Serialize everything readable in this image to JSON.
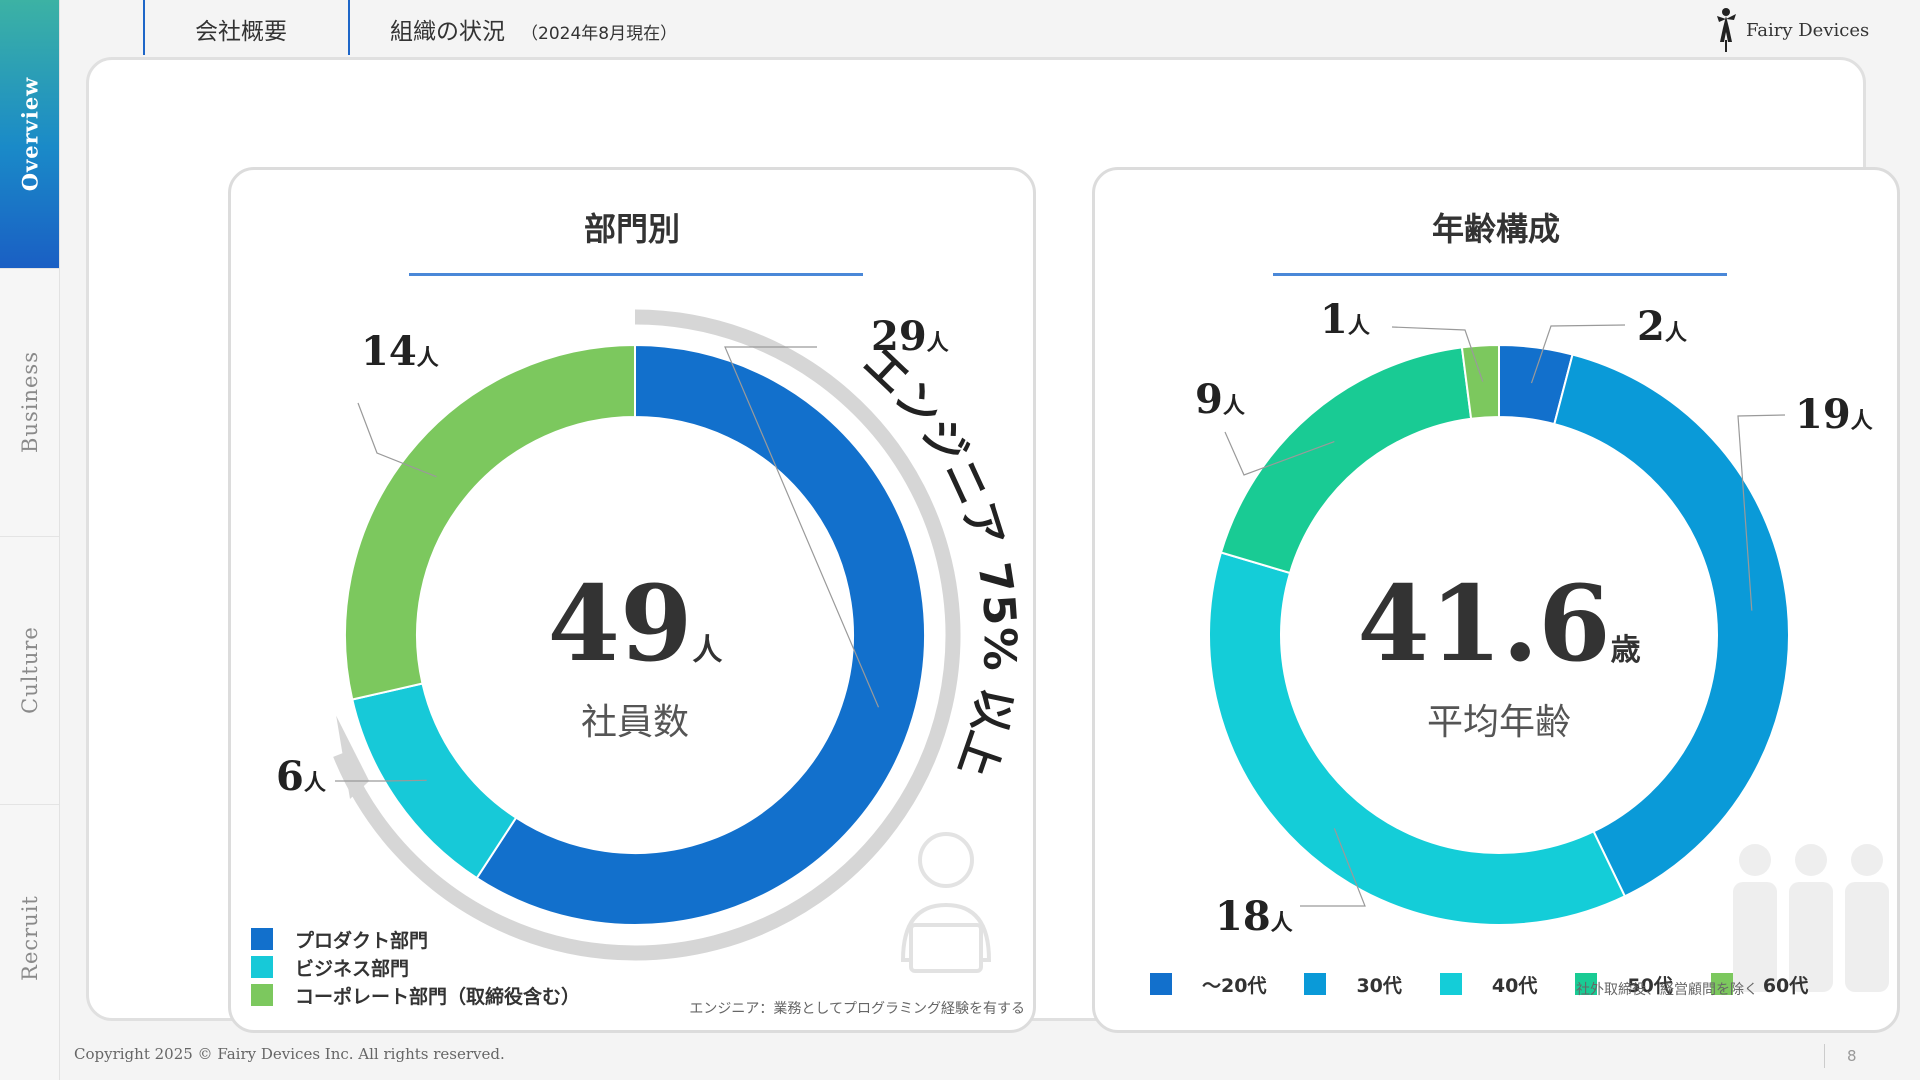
{
  "nav": {
    "items": [
      {
        "label": "Overview",
        "active": true
      },
      {
        "label": "Business",
        "active": false
      },
      {
        "label": "Culture",
        "active": false
      },
      {
        "label": "Recruit",
        "active": false
      }
    ]
  },
  "header": {
    "section": "会社概要",
    "title": "組織の状況",
    "date_note": "（2024年8月現在）",
    "logo_text": "Fairy Devices"
  },
  "colors": {
    "accent": "#1e66c8",
    "product": "#1270cc",
    "business": "#17c9d8",
    "corporate": "#7cc85e",
    "age_20s": "#1270cc",
    "age_30s": "#0a9ad8",
    "age_40s": "#14cdd8",
    "age_50s": "#19cb94",
    "age_60s": "#7cc85e"
  },
  "dept_panel": {
    "title": "部門別",
    "center_value": "49",
    "center_unit": "人",
    "center_label": "社員数",
    "arc_label": "エンジニア 75% 以上",
    "labels": [
      "29",
      "6",
      "14"
    ],
    "unit": "人",
    "legend": [
      "プロダクト部門",
      "ビジネス部門",
      "コーポレート部門（取締役含む）"
    ],
    "footnote": "エンジニア：業務としてプログラミング経験を有する",
    "icon": "engineer-icon"
  },
  "age_panel": {
    "title": "年齢構成",
    "center_value": "41.6",
    "center_unit": "歳",
    "center_label": "平均年齢",
    "labels": [
      "2",
      "19",
      "18",
      "9",
      "1"
    ],
    "unit": "人",
    "legend": [
      "～20代",
      "30代",
      "40代",
      "50代",
      "60代"
    ],
    "icon": "people-group-icon"
  },
  "age_note": "社外取締役、経営顧問を除く",
  "chart_data": [
    {
      "type": "pie",
      "title": "部門別",
      "categories": [
        "プロダクト部門",
        "ビジネス部門",
        "コーポレート部門（取締役含む）"
      ],
      "values": [
        29,
        6,
        14
      ],
      "unit": "人",
      "total": 49,
      "legend": "bottom-left"
    },
    {
      "type": "pie",
      "title": "年齢構成",
      "categories": [
        "～20代",
        "30代",
        "40代",
        "50代",
        "60代"
      ],
      "values": [
        2,
        19,
        18,
        9,
        1
      ],
      "unit": "人",
      "legend": "bottom"
    }
  ],
  "footer": {
    "copyright": "Copyright  2025 © Fairy Devices Inc. All rights reserved.",
    "page": "8"
  }
}
